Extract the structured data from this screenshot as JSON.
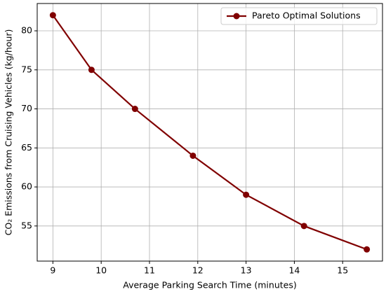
{
  "chart_data": {
    "type": "line",
    "x_label": "Average Parking Search Time (minutes)",
    "y_label": "CO₂ Emissions from Cruising Vehicles (kg/hour)",
    "x": [
      9,
      9.8,
      10.7,
      11.9,
      13,
      14.2,
      15.5
    ],
    "series": [
      {
        "name": "Pareto Optimal Solutions",
        "color": "#800000",
        "values": [
          82,
          75,
          70,
          64,
          59,
          55,
          52
        ]
      }
    ],
    "xlim": [
      8.675,
      15.825
    ],
    "ylim": [
      50.5,
      83.5
    ],
    "xticks": [
      9,
      10,
      11,
      12,
      13,
      14,
      15
    ],
    "yticks": [
      55,
      60,
      65,
      70,
      75,
      80
    ],
    "grid": true,
    "legend": "upper right"
  }
}
